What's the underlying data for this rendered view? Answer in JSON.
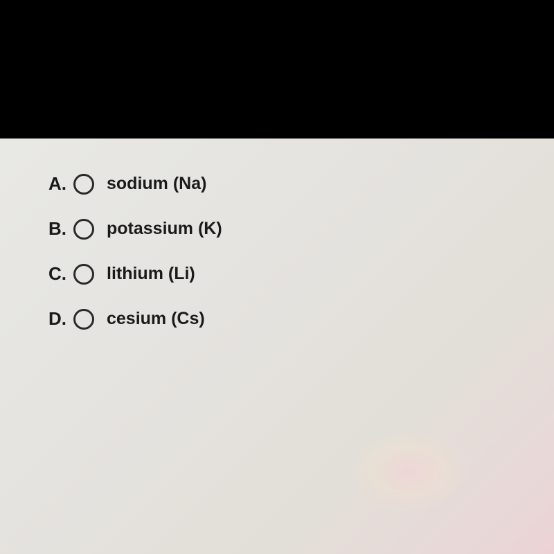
{
  "question": {
    "partial_cut_text": "...",
    "options": [
      {
        "letter": "A.",
        "label": "sodium (Na)"
      },
      {
        "letter": "B.",
        "label": "potassium (K)"
      },
      {
        "letter": "C.",
        "label": "lithium (Li)"
      },
      {
        "letter": "D.",
        "label": "cesium (Cs)"
      }
    ]
  },
  "colors": {
    "background_top": "#000000",
    "paper": "#e5e3df",
    "text": "#1a1a1a",
    "radio_border": "#2a2a2a"
  }
}
